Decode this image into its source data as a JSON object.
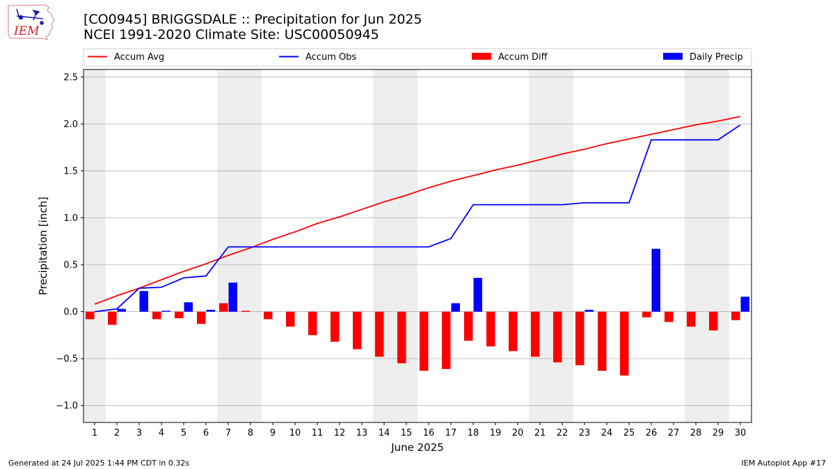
{
  "header": {
    "title": "[CO0945] BRIGGSDALE :: Precipitation for Jun 2025",
    "subtitle": "NCEI 1991-2020 Climate Site: USC00050945",
    "logo_text": "IEM"
  },
  "footer": {
    "generated": "Generated at 24 Jul 2025 1:44 PM CDT in 0.32s",
    "app": "IEM Autoplot App #17"
  },
  "chart_data": {
    "type": "bar",
    "xlabel": "June 2025",
    "ylabel": "Precipitation [inch]",
    "ylim": [
      -1.18,
      2.58
    ],
    "yticks": [
      -1.0,
      -0.5,
      0.0,
      0.5,
      1.0,
      1.5,
      2.0,
      2.5
    ],
    "ytick_labels": [
      "−1.0",
      "−0.5",
      "0.0",
      "0.5",
      "1.0",
      "1.5",
      "2.0",
      "2.5"
    ],
    "grid": "horizontal",
    "legend_position": "top",
    "weekend_shading": [
      [
        1,
        1
      ],
      [
        7,
        8
      ],
      [
        14,
        15
      ],
      [
        21,
        22
      ],
      [
        28,
        29
      ]
    ],
    "days": [
      1,
      2,
      3,
      4,
      5,
      6,
      7,
      8,
      9,
      10,
      11,
      12,
      13,
      14,
      15,
      16,
      17,
      18,
      19,
      20,
      21,
      22,
      23,
      24,
      25,
      26,
      27,
      28,
      29,
      30
    ],
    "series": [
      {
        "name": "Accum Avg",
        "kind": "line",
        "color": "#ff0000",
        "values": [
          0.08,
          0.17,
          0.25,
          0.34,
          0.43,
          0.51,
          0.6,
          0.68,
          0.77,
          0.85,
          0.94,
          1.01,
          1.09,
          1.17,
          1.24,
          1.32,
          1.39,
          1.45,
          1.51,
          1.56,
          1.62,
          1.68,
          1.73,
          1.79,
          1.84,
          1.89,
          1.94,
          1.99,
          2.03,
          2.08
        ]
      },
      {
        "name": "Accum Obs",
        "kind": "line",
        "color": "#0000ff",
        "values": [
          0.0,
          0.03,
          0.25,
          0.26,
          0.36,
          0.38,
          0.69,
          0.69,
          0.69,
          0.69,
          0.69,
          0.69,
          0.69,
          0.69,
          0.69,
          0.69,
          0.78,
          1.14,
          1.14,
          1.14,
          1.14,
          1.14,
          1.16,
          1.16,
          1.16,
          1.83,
          1.83,
          1.83,
          1.83,
          1.99
        ]
      },
      {
        "name": "Accum Diff",
        "kind": "bar",
        "color": "#ff0000",
        "values": [
          -0.08,
          -0.14,
          0.0,
          -0.08,
          -0.07,
          -0.13,
          0.09,
          0.01,
          -0.08,
          -0.16,
          -0.25,
          -0.32,
          -0.4,
          -0.48,
          -0.55,
          -0.63,
          -0.61,
          -0.31,
          -0.37,
          -0.42,
          -0.48,
          -0.54,
          -0.57,
          -0.63,
          -0.68,
          -0.06,
          -0.11,
          -0.16,
          -0.2,
          -0.09
        ]
      },
      {
        "name": "Daily Precip",
        "kind": "bar",
        "color": "#0000ff",
        "values": [
          0.0,
          0.03,
          0.22,
          0.01,
          0.1,
          0.02,
          0.31,
          0.0,
          0.0,
          0.0,
          0.0,
          0.0,
          0.0,
          0.0,
          0.0,
          0.0,
          0.09,
          0.36,
          0.0,
          0.0,
          0.0,
          0.0,
          0.02,
          0.0,
          0.0,
          0.67,
          0.0,
          0.0,
          0.0,
          0.16
        ]
      }
    ]
  }
}
